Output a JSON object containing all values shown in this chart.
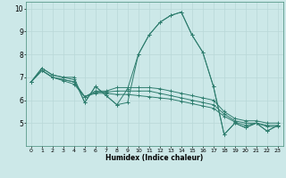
{
  "xlabel": "Humidex (Indice chaleur)",
  "xlim": [
    -0.5,
    23.5
  ],
  "ylim": [
    4.0,
    10.3
  ],
  "yticks": [
    5,
    6,
    7,
    8,
    9,
    10
  ],
  "xticks": [
    0,
    1,
    2,
    3,
    4,
    5,
    6,
    7,
    8,
    9,
    10,
    11,
    12,
    13,
    14,
    15,
    16,
    17,
    18,
    19,
    20,
    21,
    22,
    23
  ],
  "bg_color": "#cce8e8",
  "line_color": "#2e7d6e",
  "grid_color": "#b8d8d8",
  "series": [
    [
      6.8,
      7.4,
      7.1,
      7.0,
      7.0,
      5.9,
      6.6,
      6.2,
      5.8,
      5.9,
      8.0,
      8.85,
      9.4,
      9.7,
      9.85,
      8.85,
      8.1,
      6.6,
      4.5,
      5.0,
      4.8,
      5.0,
      4.65,
      4.9
    ],
    [
      6.8,
      7.4,
      7.1,
      7.0,
      6.9,
      5.9,
      6.6,
      6.2,
      5.8,
      6.5,
      8.0,
      8.85,
      9.4,
      9.7,
      9.85,
      8.85,
      8.1,
      6.6,
      4.5,
      5.0,
      4.8,
      5.0,
      4.65,
      4.9
    ],
    [
      6.8,
      7.3,
      7.0,
      6.9,
      6.8,
      6.15,
      6.4,
      6.4,
      6.55,
      6.55,
      6.55,
      6.55,
      6.5,
      6.4,
      6.3,
      6.2,
      6.1,
      6.0,
      5.5,
      5.2,
      5.1,
      5.1,
      5.0,
      5.0
    ],
    [
      6.8,
      7.3,
      7.0,
      6.9,
      6.8,
      6.15,
      6.35,
      6.35,
      6.4,
      6.4,
      6.4,
      6.4,
      6.3,
      6.2,
      6.1,
      6.0,
      5.9,
      5.8,
      5.4,
      5.1,
      5.0,
      5.0,
      4.9,
      4.9
    ],
    [
      6.8,
      7.3,
      7.0,
      6.85,
      6.7,
      6.15,
      6.3,
      6.3,
      6.25,
      6.25,
      6.2,
      6.15,
      6.1,
      6.05,
      5.95,
      5.85,
      5.75,
      5.65,
      5.3,
      5.05,
      4.9,
      5.0,
      4.85,
      4.85
    ]
  ]
}
